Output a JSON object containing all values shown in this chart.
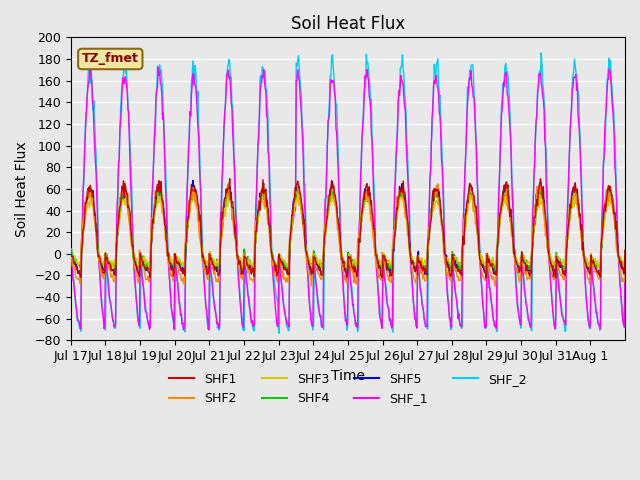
{
  "title": "Soil Heat Flux",
  "ylabel": "Soil Heat Flux",
  "xlabel": "Time",
  "annotation": "TZ_fmet",
  "ylim": [
    -80,
    200
  ],
  "series_colors": {
    "SHF1": "#cc0000",
    "SHF2": "#ff8800",
    "SHF3": "#cccc00",
    "SHF4": "#00cc00",
    "SHF5": "#0000cc",
    "SHF_1": "#ff00ff",
    "SHF_2": "#00ccff"
  },
  "xtick_labels": [
    "Jul 17",
    "Jul 18",
    "Jul 19",
    "Jul 20",
    "Jul 21",
    "Jul 22",
    "Jul 23",
    "Jul 24",
    "Jul 25",
    "Jul 26",
    "Jul 27",
    "Jul 28",
    "Jul 29",
    "Jul 30",
    "Jul 31",
    "Aug 1"
  ],
  "bg_color": "#e8e8e8",
  "plot_bg_color": "#e8e8e8",
  "grid_color": "#ffffff",
  "title_fontsize": 12,
  "axis_label_fontsize": 10,
  "tick_fontsize": 9,
  "yticks": [
    -80,
    -60,
    -40,
    -20,
    0,
    20,
    40,
    60,
    80,
    100,
    120,
    140,
    160,
    180,
    200
  ]
}
